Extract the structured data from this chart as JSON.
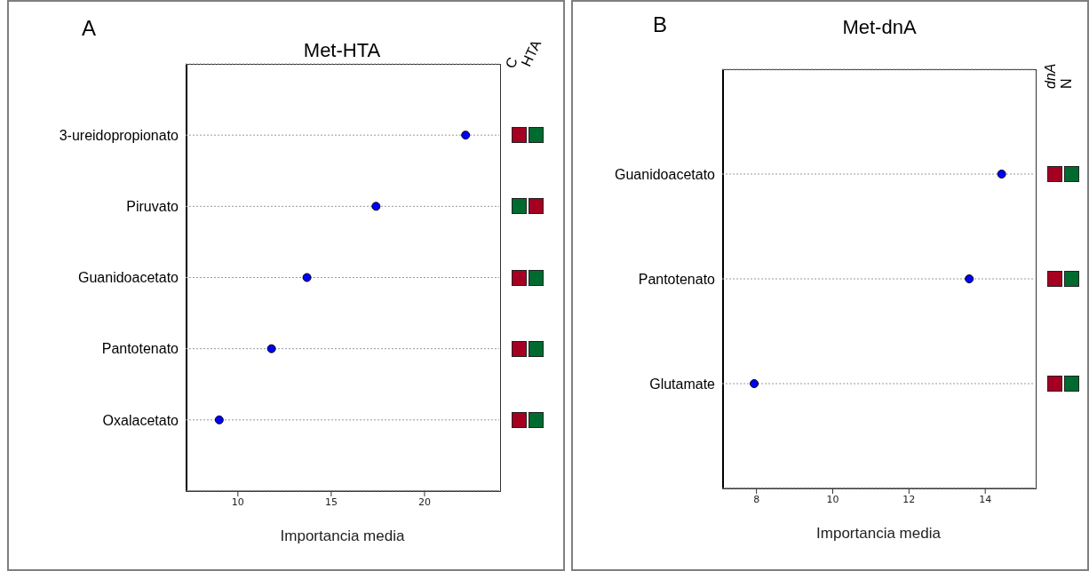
{
  "chart_data": [
    {
      "type": "scatter",
      "title": "Met-HTA",
      "xlabel": "Importancia  media",
      "categories": [
        "3-ureidopropionato",
        "Piruvato",
        "Guanidoacetato",
        "Pantotenato",
        "Oxalacetato"
      ],
      "values": [
        22.2,
        17.4,
        13.7,
        11.8,
        9.0
      ],
      "color": "#0000ff",
      "marker": "circle",
      "orientation": "horizontal",
      "xlim": [
        7.2,
        24
      ],
      "xticks": [
        10,
        15,
        20
      ],
      "grid": "y",
      "annotations": [
        "A",
        "C",
        "HTA"
      ]
    },
    {
      "type": "scatter",
      "title": "Met-dnA",
      "xlabel": "Importancia  media",
      "categories": [
        "Guanidoacetato",
        "Pantotenato",
        "Glutamate"
      ],
      "values": [
        14.43,
        13.58,
        7.94
      ],
      "color": "#0000ff",
      "marker": "circle",
      "orientation": "horizontal",
      "xlim": [
        7.1,
        15.3
      ],
      "xticks": [
        8,
        10,
        12,
        14
      ],
      "grid": "y",
      "annotations": [
        "B",
        "dnA",
        "N"
      ]
    }
  ]
}
